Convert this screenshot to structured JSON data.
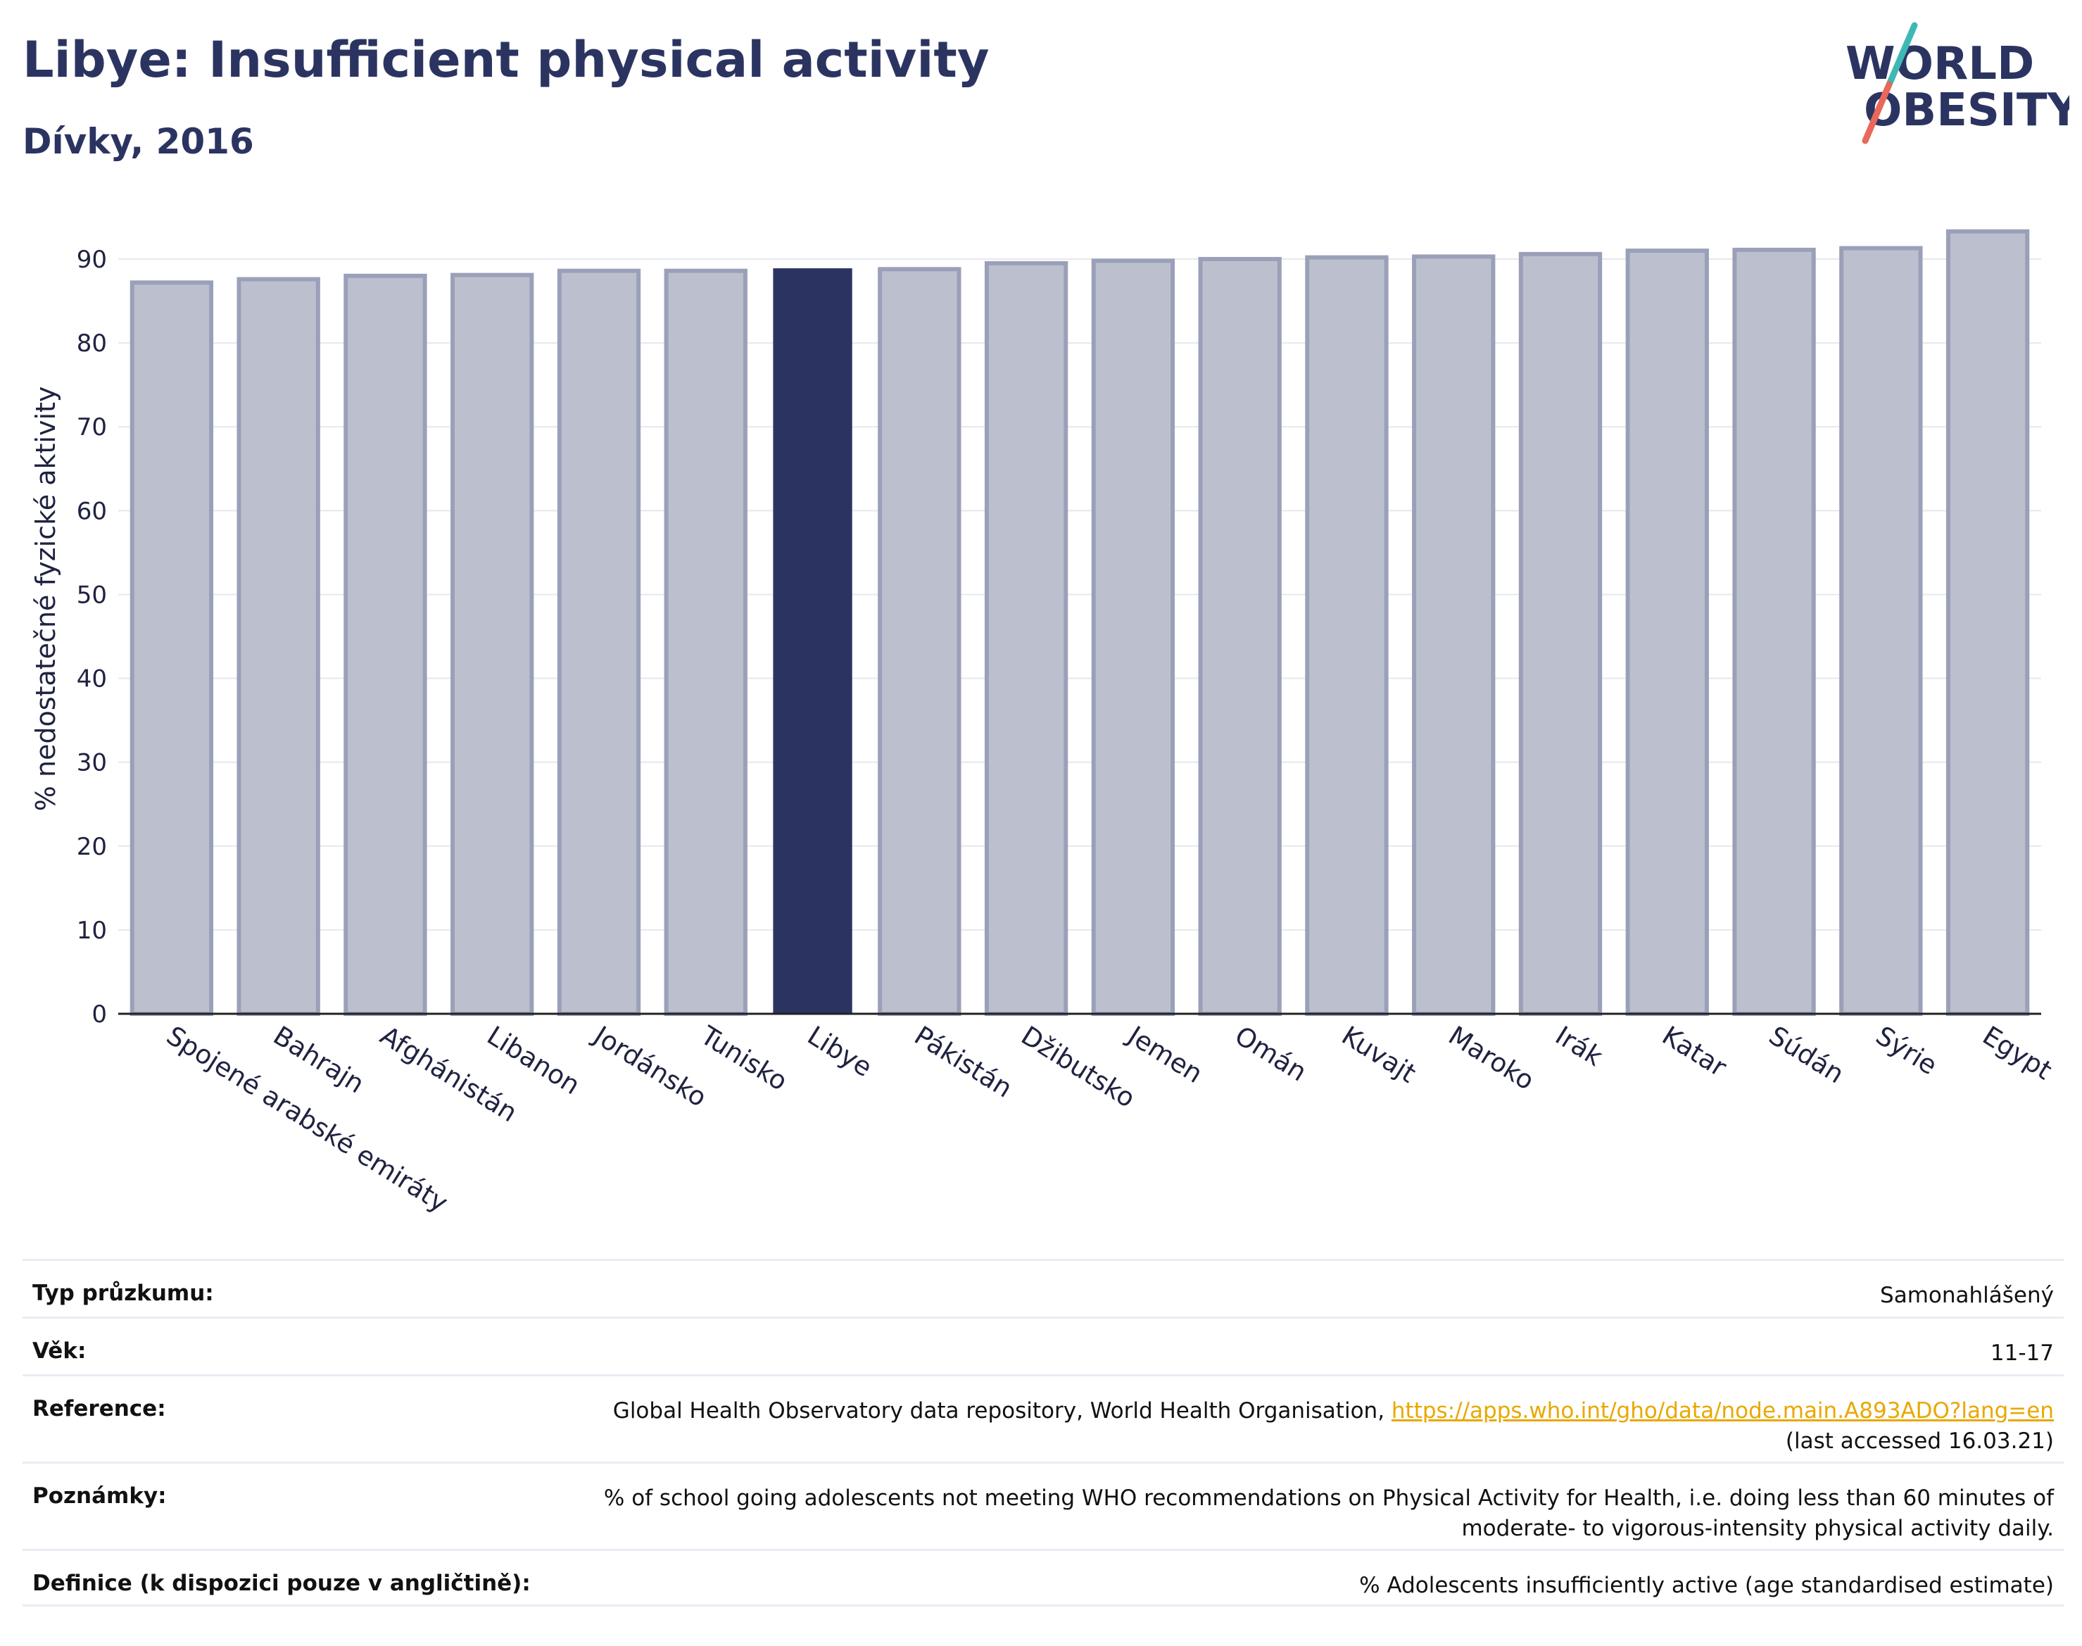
{
  "header": {
    "title": "Libye: Insufficient physical activity",
    "subtitle": "Dívky, 2016"
  },
  "logo": {
    "line1": "WORLD",
    "line2": "OBESITY",
    "colors": {
      "text": "#2b3461",
      "slash_top": "#3fb8b5",
      "slash_bottom": "#e8685a"
    }
  },
  "colors": {
    "highlight_bar": "#2b3461",
    "bar_fill": "#bcc0ce",
    "bar_stroke": "#9aa0b8",
    "grid": "#e6e8ef",
    "link": "#e8a800"
  },
  "chart_data": {
    "type": "bar",
    "ylabel": "% nedostatečné fyzické aktivity",
    "ylim": [
      0,
      95
    ],
    "yticks": [
      0,
      10,
      20,
      30,
      40,
      50,
      60,
      70,
      80,
      90
    ],
    "grid": true,
    "highlight": "Libye",
    "categories": [
      "Spojené arabské emiráty",
      "Bahrajn",
      "Afghánistán",
      "Libanon",
      "Jordánsko",
      "Tunisko",
      "Libye",
      "Pákistán",
      "Džibutsko",
      "Jemen",
      "Omán",
      "Kuvajt",
      "Maroko",
      "Irák",
      "Katar",
      "Súdán",
      "Sýrie",
      "Egypt"
    ],
    "values": [
      87.2,
      87.6,
      88.0,
      88.1,
      88.6,
      88.6,
      88.9,
      88.8,
      89.5,
      89.8,
      90.0,
      90.2,
      90.3,
      90.6,
      91.0,
      91.1,
      91.3,
      93.3
    ]
  },
  "info": {
    "rows": [
      {
        "label": "Typ průzkumu:",
        "value": "Samonahlášený"
      },
      {
        "label": "Věk:",
        "value": "11-17"
      },
      {
        "label": "Reference:",
        "value": "Global Health Observatory data repository, World Health Organisation, ",
        "link": "https://apps.who.int/gho/data/node.main.A893ADO?lang=en",
        "value2": "(last accessed 16.03.21)"
      },
      {
        "label": "Poznámky:",
        "value": "% of school going adolescents not meeting WHO recommendations on Physical Activity for Health, i.e. doing less than 60 minutes of",
        "value2": "moderate- to vigorous-intensity physical activity daily."
      },
      {
        "label": "Definice (k dispozici pouze v angličtině):",
        "value": "% Adolescents insufficiently active (age standardised estimate)"
      }
    ]
  }
}
